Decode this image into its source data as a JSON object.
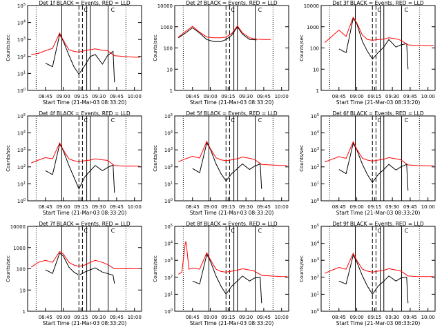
{
  "figure": {
    "colors": {
      "events": "#000000",
      "lld": "#ff0000",
      "background": "#ffffff"
    }
  },
  "chart_data": [
    {
      "type": "line",
      "title": "Det 1f BLACK = Events, RED = LLD",
      "xlabel": "Start Time (21-Mar-03 08:33:20)",
      "ylabel": "Counts/sec",
      "x_ticks": [
        "08:45",
        "09:00",
        "09:15",
        "09:30",
        "09:45",
        "10:00"
      ],
      "y_ticks": [
        "10^0",
        "10^1",
        "10^2",
        "10^3",
        "10^4",
        "10^5"
      ],
      "yscale": "log",
      "ylim": [
        1,
        100000
      ],
      "series": [
        {
          "name": "Events",
          "color": "#000000",
          "x": [
            8.75,
            8.85,
            8.95,
            9.0,
            9.08,
            9.15,
            9.22,
            9.3,
            9.38,
            9.45,
            9.55,
            9.62,
            9.7,
            9.72
          ],
          "y": [
            40,
            25,
            2000,
            800,
            120,
            25,
            9,
            28,
            100,
            130,
            35,
            110,
            200,
            3
          ]
        },
        {
          "name": "LLD",
          "color": "#ff0000",
          "x": [
            8.55,
            8.65,
            8.75,
            8.85,
            8.95,
            9.0,
            9.08,
            9.15,
            9.22,
            9.3,
            9.38,
            9.45,
            9.55,
            9.62,
            9.72,
            9.85,
            10.0,
            10.08
          ],
          "y": [
            130,
            150,
            220,
            300,
            2400,
            900,
            250,
            200,
            180,
            220,
            250,
            280,
            230,
            220,
            110,
            100,
            90,
            90
          ]
        }
      ],
      "marker_label": "C"
    },
    {
      "type": "line",
      "title": "Det 2f BLACK = Events, RED = LLD",
      "xlabel": "Start Time (21-Mar-03 08:33:20)",
      "ylabel": "Counts/sec",
      "x_ticks": [
        "08:45",
        "09:00",
        "09:15",
        "09:30",
        "09:45",
        "10:00"
      ],
      "y_ticks": [
        "1",
        "10",
        "100",
        "1000",
        "10000"
      ],
      "yscale": "log",
      "ylim": [
        1,
        10000
      ],
      "series": [
        {
          "name": "Events",
          "color": "#000000",
          "x": [
            8.55,
            8.65,
            8.75,
            8.85,
            8.95,
            9.05,
            9.15,
            9.22,
            9.3,
            9.38,
            9.45,
            9.55,
            9.65
          ],
          "y": [
            300,
            500,
            900,
            500,
            250,
            200,
            200,
            250,
            400,
            1000,
            450,
            250,
            240
          ]
        },
        {
          "name": "LLD",
          "color": "#ff0000",
          "x": [
            8.55,
            8.65,
            8.75,
            8.85,
            8.95,
            9.05,
            9.15,
            9.22,
            9.3,
            9.38,
            9.45,
            9.55,
            9.65,
            9.75,
            9.85
          ],
          "y": [
            320,
            600,
            1050,
            550,
            330,
            300,
            300,
            330,
            480,
            1100,
            520,
            300,
            260,
            250,
            250
          ]
        }
      ],
      "marker_label": "C"
    },
    {
      "type": "line",
      "title": "Det 3f BLACK = Events, RED = LLD",
      "xlabel": "Start Time (21-Mar-03 08:33:20)",
      "ylabel": "Counts/sec",
      "x_ticks": [
        "08:45",
        "09:00",
        "09:15",
        "09:30",
        "09:45",
        "10:00"
      ],
      "y_ticks": [
        "1",
        "10",
        "100",
        "1000",
        "10000"
      ],
      "yscale": "log",
      "ylim": [
        1,
        10000
      ],
      "series": [
        {
          "name": "Events",
          "color": "#000000",
          "x": [
            8.75,
            8.85,
            8.95,
            9.0,
            9.08,
            9.15,
            9.22,
            9.3,
            9.38,
            9.45,
            9.55,
            9.62,
            9.7,
            9.72
          ],
          "y": [
            90,
            60,
            2500,
            1400,
            200,
            70,
            30,
            60,
            110,
            250,
            110,
            140,
            160,
            10
          ]
        },
        {
          "name": "LLD",
          "color": "#ff0000",
          "x": [
            8.55,
            8.65,
            8.75,
            8.85,
            8.95,
            9.0,
            9.08,
            9.15,
            9.22,
            9.3,
            9.38,
            9.45,
            9.55,
            9.62,
            9.72,
            9.85,
            10.0,
            10.08
          ],
          "y": [
            180,
            350,
            700,
            350,
            2800,
            1500,
            400,
            250,
            230,
            250,
            260,
            300,
            270,
            230,
            140,
            130,
            130,
            130
          ]
        }
      ],
      "marker_label": "C"
    },
    {
      "type": "line",
      "title": "Det 4f BLACK = Events, RED = LLD",
      "xlabel": "Start Time (21-Mar-03 08:33:20)",
      "ylabel": "Counts/sec",
      "x_ticks": [
        "08:45",
        "09:00",
        "09:15",
        "09:30",
        "09:45",
        "10:00"
      ],
      "y_ticks": [
        "10^0",
        "10^1",
        "10^2",
        "10^3",
        "10^4",
        "10^5"
      ],
      "yscale": "log",
      "ylim": [
        1,
        100000
      ],
      "series": [
        {
          "name": "Events",
          "color": "#000000",
          "x": [
            8.75,
            8.85,
            8.95,
            9.0,
            9.08,
            9.15,
            9.22,
            9.3,
            9.38,
            9.45,
            9.55,
            9.62,
            9.7,
            9.72
          ],
          "y": [
            60,
            35,
            2200,
            900,
            120,
            25,
            5,
            25,
            60,
            120,
            60,
            90,
            130,
            3
          ]
        },
        {
          "name": "LLD",
          "color": "#ff0000",
          "x": [
            8.55,
            8.65,
            8.75,
            8.85,
            8.95,
            9.0,
            9.08,
            9.15,
            9.22,
            9.3,
            9.38,
            9.45,
            9.55,
            9.62,
            9.72,
            9.85,
            10.0,
            10.08
          ],
          "y": [
            170,
            250,
            350,
            300,
            2600,
            1000,
            300,
            230,
            200,
            230,
            250,
            300,
            260,
            240,
            120,
            110,
            110,
            110
          ]
        }
      ],
      "marker_label": "C"
    },
    {
      "type": "line",
      "title": "Det 5f BLACK = Events, RED = LLD",
      "xlabel": "Start Time (21-Mar-03 08:33:20)",
      "ylabel": "Counts/sec",
      "x_ticks": [
        "08:45",
        "09:00",
        "09:15",
        "09:30",
        "09:45",
        "10:00"
      ],
      "y_ticks": [
        "10^0",
        "10^1",
        "10^2",
        "10^3",
        "10^4",
        "10^5"
      ],
      "yscale": "log",
      "ylim": [
        1,
        100000
      ],
      "series": [
        {
          "name": "Events",
          "color": "#000000",
          "x": [
            8.75,
            8.85,
            8.95,
            9.0,
            9.08,
            9.15,
            9.22,
            9.3,
            9.38,
            9.45,
            9.55,
            9.62,
            9.7,
            9.72
          ],
          "y": [
            80,
            45,
            2600,
            1100,
            150,
            40,
            15,
            40,
            80,
            150,
            70,
            110,
            150,
            5
          ]
        },
        {
          "name": "LLD",
          "color": "#ff0000",
          "x": [
            8.55,
            8.65,
            8.75,
            8.85,
            8.95,
            9.0,
            9.08,
            9.15,
            9.22,
            9.3,
            9.38,
            9.45,
            9.55,
            9.62,
            9.72,
            9.85,
            10.0,
            10.08
          ],
          "y": [
            200,
            300,
            420,
            330,
            3200,
            1200,
            340,
            260,
            230,
            260,
            300,
            380,
            320,
            270,
            140,
            130,
            120,
            120
          ]
        }
      ],
      "marker_label": "C"
    },
    {
      "type": "line",
      "title": "Det 6f BLACK = Events, RED = LLD",
      "xlabel": "Start Time (21-Mar-03 08:33:20)",
      "ylabel": "Counts/sec",
      "x_ticks": [
        "08:45",
        "09:00",
        "09:15",
        "09:30",
        "09:45",
        "10:00"
      ],
      "y_ticks": [
        "10^0",
        "10^1",
        "10^2",
        "10^3",
        "10^4",
        "10^5"
      ],
      "yscale": "log",
      "ylim": [
        1,
        100000
      ],
      "series": [
        {
          "name": "Events",
          "color": "#000000",
          "x": [
            8.75,
            8.85,
            8.95,
            9.0,
            9.08,
            9.15,
            9.22,
            9.3,
            9.38,
            9.45,
            9.55,
            9.62,
            9.7,
            9.72
          ],
          "y": [
            70,
            40,
            2400,
            1000,
            140,
            35,
            12,
            35,
            70,
            140,
            65,
            100,
            140,
            4
          ]
        },
        {
          "name": "LLD",
          "color": "#ff0000",
          "x": [
            8.55,
            8.65,
            8.75,
            8.85,
            8.95,
            9.0,
            9.08,
            9.15,
            9.22,
            9.3,
            9.38,
            9.45,
            9.55,
            9.62,
            9.72,
            9.85,
            10.0,
            10.08
          ],
          "y": [
            190,
            280,
            400,
            320,
            3000,
            1100,
            320,
            250,
            220,
            250,
            280,
            350,
            300,
            260,
            130,
            120,
            115,
            115
          ]
        }
      ],
      "marker_label": "C"
    },
    {
      "type": "line",
      "title": "Det 7f BLACK = Events, RED = LLD",
      "xlabel": "Start Time (21-Mar-03 08:33:20)",
      "ylabel": "Counts/sec",
      "x_ticks": [
        "08:45",
        "09:00",
        "09:15",
        "09:30",
        "09:45",
        "10:00"
      ],
      "y_ticks": [
        "1",
        "10",
        "100",
        "1000",
        "10000"
      ],
      "yscale": "log",
      "ylim": [
        1,
        10000
      ],
      "series": [
        {
          "name": "Events",
          "color": "#000000",
          "x": [
            8.75,
            8.85,
            8.95,
            9.0,
            9.08,
            9.15,
            9.22,
            9.3,
            9.38,
            9.45,
            9.55,
            9.62,
            9.7,
            9.72
          ],
          "y": [
            90,
            60,
            550,
            400,
            120,
            70,
            50,
            70,
            90,
            110,
            70,
            60,
            50,
            20
          ]
        },
        {
          "name": "LLD",
          "color": "#ff0000",
          "x": [
            8.55,
            8.65,
            8.75,
            8.85,
            8.95,
            9.0,
            9.08,
            9.15,
            9.22,
            9.3,
            9.38,
            9.45,
            9.55,
            9.62,
            9.72,
            9.85,
            10.0,
            10.08
          ],
          "y": [
            120,
            200,
            250,
            200,
            650,
            500,
            200,
            150,
            130,
            150,
            200,
            250,
            200,
            160,
            100,
            100,
            100,
            100
          ]
        }
      ],
      "marker_label": "C"
    },
    {
      "type": "line",
      "title": "Det 8f BLACK = Events, RED = LLD",
      "xlabel": "Start Time (21-Mar-03 08:33:20)",
      "ylabel": "Counts/sec",
      "x_ticks": [
        "08:45",
        "09:00",
        "09:15",
        "09:30",
        "09:45",
        "10:00"
      ],
      "y_ticks": [
        "10^0",
        "10^1",
        "10^2",
        "10^3",
        "10^4",
        "10^5"
      ],
      "yscale": "log",
      "ylim": [
        1,
        100000
      ],
      "series": [
        {
          "name": "Events",
          "color": "#000000",
          "x": [
            8.75,
            8.85,
            8.95,
            9.0,
            9.08,
            9.15,
            9.22,
            9.3,
            9.38,
            9.45,
            9.55,
            9.62,
            9.7,
            9.72
          ],
          "y": [
            60,
            40,
            2200,
            900,
            120,
            30,
            10,
            30,
            60,
            120,
            60,
            90,
            100,
            3
          ]
        },
        {
          "name": "LLD",
          "color": "#ff0000",
          "x": [
            8.55,
            8.6,
            8.65,
            8.66,
            8.7,
            8.75,
            8.85,
            8.95,
            9.0,
            9.08,
            9.15,
            9.22,
            9.3,
            9.38,
            9.45,
            9.55,
            9.62,
            9.72,
            9.85,
            10.0,
            10.08
          ],
          "y": [
            150,
            200,
            12000,
            12000,
            300,
            350,
            300,
            2800,
            1100,
            300,
            220,
            200,
            230,
            260,
            320,
            270,
            230,
            130,
            120,
            110,
            110
          ]
        }
      ],
      "marker_label": "C"
    },
    {
      "type": "line",
      "title": "Det 9f BLACK = Events, RED = LLD",
      "xlabel": "Start Time (21-Mar-03 08:33:20)",
      "ylabel": "Counts/sec",
      "x_ticks": [
        "08:45",
        "09:00",
        "09:15",
        "09:30",
        "09:45",
        "10:00"
      ],
      "y_ticks": [
        "10^0",
        "10^1",
        "10^2",
        "10^3",
        "10^4",
        "10^5"
      ],
      "yscale": "log",
      "ylim": [
        1,
        100000
      ],
      "series": [
        {
          "name": "Events",
          "color": "#000000",
          "x": [
            8.75,
            8.85,
            8.95,
            9.0,
            9.08,
            9.15,
            9.22,
            9.3,
            9.38,
            9.45,
            9.55,
            9.62,
            9.7,
            9.72
          ],
          "y": [
            60,
            40,
            2000,
            800,
            120,
            30,
            10,
            30,
            60,
            120,
            60,
            90,
            100,
            3
          ]
        },
        {
          "name": "LLD",
          "color": "#ff0000",
          "x": [
            8.55,
            8.65,
            8.75,
            8.85,
            8.95,
            9.0,
            9.08,
            9.15,
            9.22,
            9.3,
            9.38,
            9.45,
            9.55,
            9.62,
            9.72,
            9.85,
            10.0,
            10.08
          ],
          "y": [
            170,
            260,
            380,
            300,
            2600,
            1000,
            300,
            230,
            200,
            230,
            260,
            320,
            270,
            230,
            120,
            110,
            110,
            110
          ]
        }
      ],
      "marker_label": "C"
    }
  ]
}
